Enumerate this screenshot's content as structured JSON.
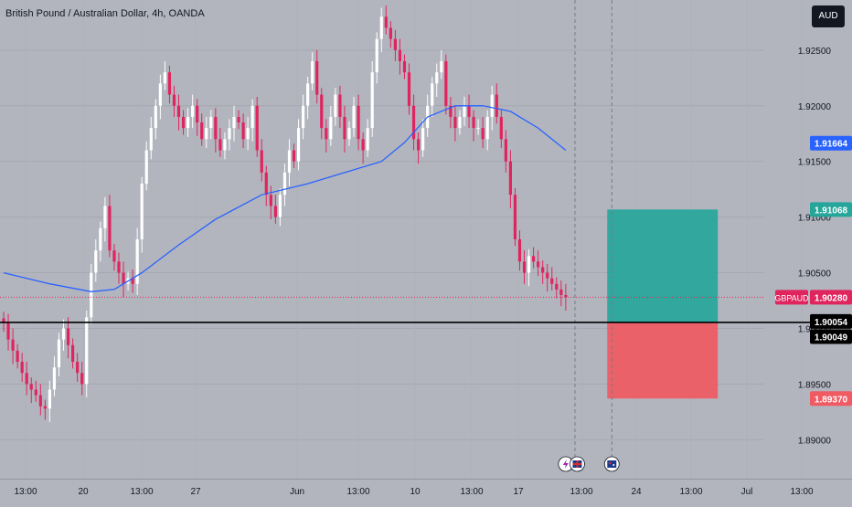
{
  "title": "British Pound / Australian Dollar, 4h, OANDA",
  "currency_button": "AUD",
  "colors": {
    "background": "#b2b5be",
    "up_candle": "#ffffff",
    "down_candle": "#e0245e",
    "moving_average": "#2962ff",
    "target_zone": "#26a69a",
    "stop_zone": "#f05a63",
    "last_price_label": "#e0245e",
    "entry_line": "#000000"
  },
  "chart_data": {
    "type": "candlestick",
    "title": "British Pound / Australian Dollar, 4h, OANDA",
    "symbol": "GBPAUD",
    "interval": "4h",
    "source": "OANDA",
    "quote_currency": "AUD",
    "ylim": [
      1.8865,
      1.9295
    ],
    "y_ticks": [
      "1.89000",
      "1.89500",
      "1.90000",
      "1.90500",
      "1.91000",
      "1.91500",
      "1.92000",
      "1.92500"
    ],
    "x_ticks": [
      "13:00",
      "20",
      "13:00",
      "27",
      "Jun",
      "13:00",
      "10",
      "13:00",
      "17",
      "13:00",
      "24",
      "13:00",
      "Jul",
      "13:00"
    ],
    "grid": true,
    "closes": [
      1.9005,
      1.899,
      1.898,
      1.897,
      1.896,
      1.895,
      1.8945,
      1.894,
      1.893,
      1.8928,
      1.8945,
      1.8965,
      1.899,
      1.9,
      1.8985,
      1.897,
      1.896,
      1.895,
      1.901,
      1.905,
      1.907,
      1.909,
      1.911,
      1.907,
      1.906,
      1.905,
      1.904,
      1.9045,
      1.904,
      1.908,
      1.913,
      1.916,
      1.918,
      1.92,
      1.922,
      1.923,
      1.921,
      1.92,
      1.919,
      1.918,
      1.919,
      1.92,
      1.9185,
      1.917,
      1.918,
      1.919,
      1.917,
      1.916,
      1.917,
      1.918,
      1.919,
      1.9185,
      1.917,
      1.918,
      1.92,
      1.916,
      1.914,
      1.912,
      1.911,
      1.91,
      1.912,
      1.914,
      1.916,
      1.915,
      1.918,
      1.92,
      1.922,
      1.924,
      1.921,
      1.918,
      1.917,
      1.919,
      1.921,
      1.919,
      1.917,
      1.918,
      1.92,
      1.917,
      1.916,
      1.918,
      1.923,
      1.926,
      1.928,
      1.927,
      1.926,
      1.925,
      1.924,
      1.923,
      1.92,
      1.917,
      1.916,
      1.918,
      1.92,
      1.922,
      1.923,
      1.924,
      1.92,
      1.919,
      1.918,
      1.919,
      1.92,
      1.919,
      1.918,
      1.918,
      1.917,
      1.919,
      1.921,
      1.919,
      1.917,
      1.915,
      1.912,
      1.908,
      1.906,
      1.905,
      1.9065,
      1.906,
      1.9055,
      1.905,
      1.9045,
      1.904,
      1.9035,
      1.903,
      1.9028
    ],
    "moving_average": {
      "name": "",
      "color": "#2962ff",
      "points": [
        [
          0,
          1.905
        ],
        [
          10,
          1.904
        ],
        [
          19,
          1.9033
        ],
        [
          24,
          1.9035
        ],
        [
          30,
          1.905
        ],
        [
          38,
          1.9075
        ],
        [
          46,
          1.9098
        ],
        [
          56,
          1.912
        ],
        [
          66,
          1.913
        ],
        [
          74,
          1.914
        ],
        [
          82,
          1.915
        ],
        [
          87,
          1.9167
        ],
        [
          92,
          1.919
        ],
        [
          98,
          1.92
        ],
        [
          104,
          1.92
        ],
        [
          110,
          1.9195
        ],
        [
          116,
          1.918
        ],
        [
          122,
          1.916
        ]
      ]
    },
    "current_ma_value": "1.91664",
    "last_price": "1.90280",
    "entry_line_price": 1.90054,
    "position": {
      "type": "long",
      "entry": "1.90049",
      "target": "1.91068",
      "stop": "1.89370",
      "start_bar": 131,
      "end_bar": 155
    },
    "vertical_markers": [
      {
        "bar": 124,
        "style": "dashed"
      },
      {
        "bar": 132,
        "style": "dashed"
      }
    ],
    "event_icons": [
      {
        "bar": 122,
        "name": "earnings-bolt-icon"
      },
      {
        "bar": 124.5,
        "name": "uk-flag-icon"
      },
      {
        "bar": 132,
        "name": "australia-flag-icon"
      }
    ]
  }
}
